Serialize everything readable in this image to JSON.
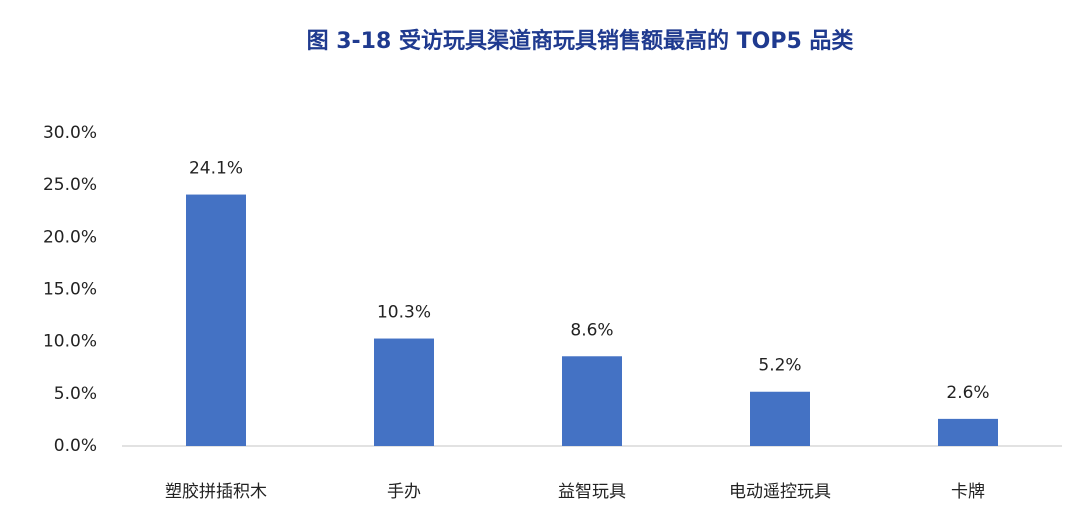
{
  "chart_data": {
    "type": "bar",
    "title": "图 3-18 受访玩具渠道商玩具销售额最高的 TOP5 品类",
    "categories": [
      "塑胶拼插积木",
      "手办",
      "益智玩具",
      "电动遥控玩具",
      "卡牌"
    ],
    "values": [
      24.1,
      10.3,
      8.6,
      5.2,
      2.6
    ],
    "value_labels": [
      "24.1%",
      "10.3%",
      "8.6%",
      "5.2%",
      "2.6%"
    ],
    "color": "#4472c4",
    "ylim": [
      0,
      30
    ],
    "yticks": [
      {
        "value": 0,
        "label": "0.0%"
      },
      {
        "value": 5,
        "label": "5.0%"
      },
      {
        "value": 10,
        "label": "10.0%"
      },
      {
        "value": 15,
        "label": "15.0%"
      },
      {
        "value": 20,
        "label": "20.0%"
      },
      {
        "value": 25,
        "label": "25.0%"
      },
      {
        "value": 30,
        "label": "30.0%"
      }
    ],
    "grid": false
  }
}
